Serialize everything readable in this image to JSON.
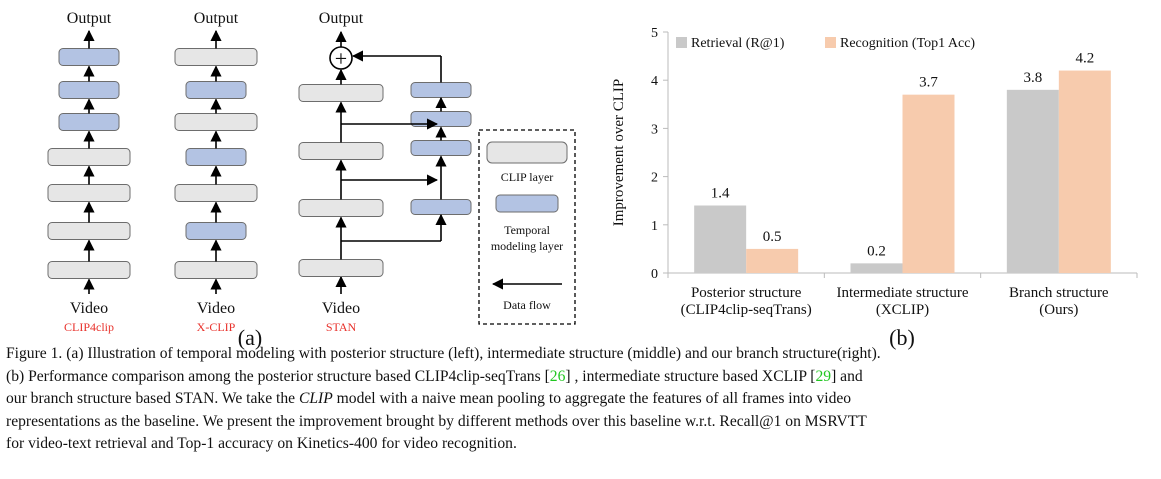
{
  "diagram": {
    "output_label": "Output",
    "video_label": "Video",
    "plus_symbol": "+",
    "models": [
      {
        "name": "CLIP4clip",
        "layers": [
          "clip",
          "clip",
          "clip",
          "clip",
          "temporal",
          "temporal",
          "temporal"
        ]
      },
      {
        "name": "X-CLIP",
        "layers": [
          "clip",
          "temporal",
          "clip",
          "temporal",
          "clip",
          "temporal",
          "clip"
        ]
      },
      {
        "name": "STAN",
        "layers": [
          "clip",
          "clip",
          "clip",
          "clip"
        ],
        "branch_layers": [
          "temporal",
          "temporal",
          "temporal",
          "temporal"
        ]
      }
    ],
    "legend": {
      "clip_layer": "CLIP layer",
      "temporal_line1": "Temporal",
      "temporal_line2": "modeling layer",
      "data_flow": "Data flow"
    },
    "panel_label": "(a)",
    "colors": {
      "clip": "#e6e6e6",
      "temporal": "#b3c3e3",
      "model_name": "#e8312b"
    }
  },
  "chart_data": {
    "type": "bar",
    "categories": [
      [
        "Posterior structure",
        "(CLIP4clip-seqTrans)"
      ],
      [
        "Intermediate structure",
        "(XCLIP)"
      ],
      [
        "Branch structure",
        "(Ours)"
      ]
    ],
    "series": [
      {
        "name": "Retrieval (R@1)",
        "values": [
          1.4,
          0.2,
          3.8
        ],
        "color": "#c9c9c9"
      },
      {
        "name": "Recognition (Top1 Acc)",
        "values": [
          0.5,
          3.7,
          4.2
        ],
        "color": "#f7cbad"
      }
    ],
    "ylabel": "Improvement over CLIP",
    "xlabel": "",
    "ylim": [
      0,
      5
    ],
    "yticks": [
      0,
      1,
      2,
      3,
      4,
      5
    ],
    "grid": false,
    "legend_position": "top-left",
    "panel_label": "(b)"
  },
  "caption": {
    "line1": "Figure 1. (a) Illustration of temporal modeling with posterior structure (left), intermediate structure (middle) and our branch structure(right).",
    "line2_a": "(b) Performance comparison among the posterior structure based CLIP4clip-seqTrans [",
    "ref1": "26",
    "line2_b": "] , intermediate structure based XCLIP [",
    "ref2": "29",
    "line2_c": "] and",
    "line3": "our branch structure based STAN. We take the ",
    "clip_italic": "CLIP",
    "line3_b": " model with a naive mean pooling to aggregate the features of all frames into video",
    "line4": "representations as the baseline. We present the improvement brought by different methods over this baseline w.r.t. Recall@1 on MSRVTT",
    "line5": "for video-text retrieval and Top-1 accuracy on Kinetics-400 for video recognition."
  }
}
